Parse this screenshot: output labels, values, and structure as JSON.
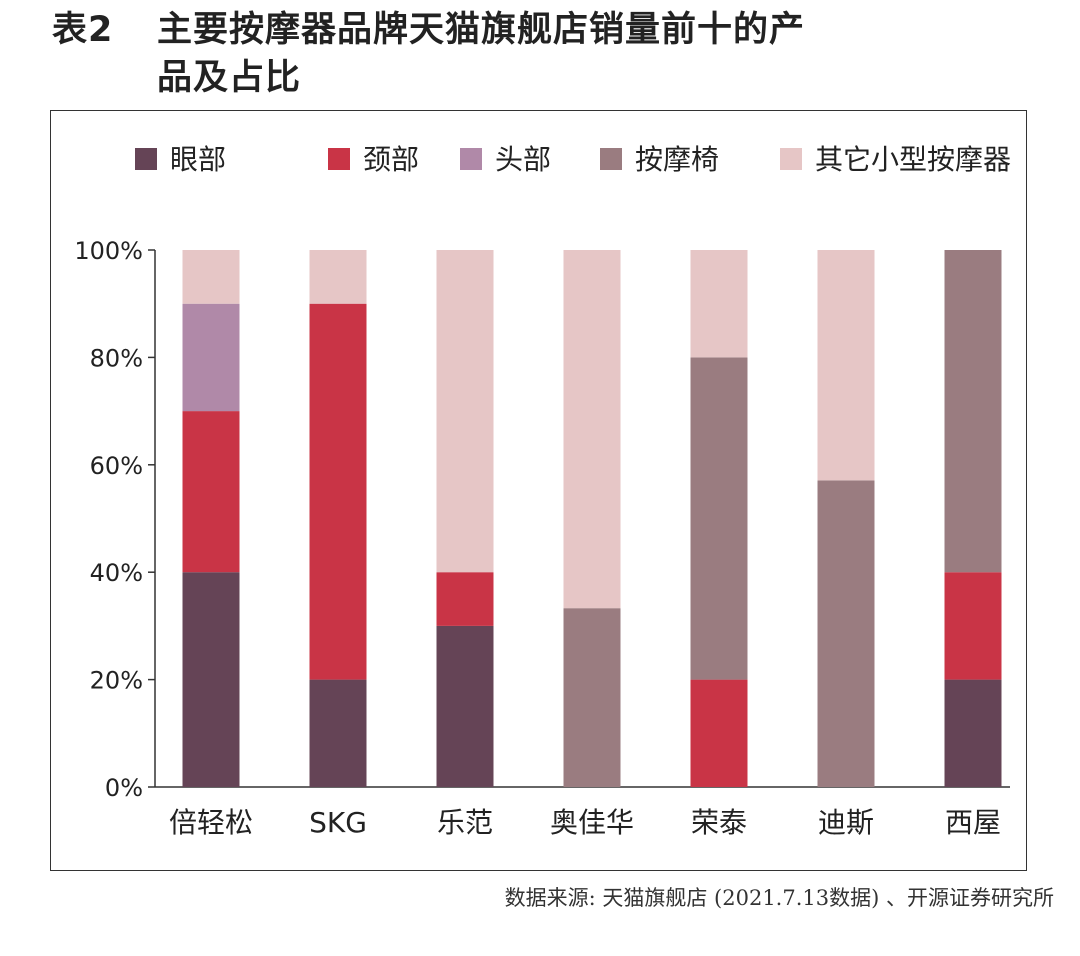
{
  "title": {
    "number": "表2",
    "line1": "主要按摩器品牌天猫旗舰店销量前十的产",
    "line2": "品及占比"
  },
  "source": "数据来源: 天猫旗舰店 (2021.7.13数据) 、开源证券研究所",
  "chart_data": {
    "type": "bar",
    "stacked": true,
    "categories": [
      "倍轻松",
      "SKG",
      "乐范",
      "奥佳华",
      "荣泰",
      "迪斯",
      "西屋"
    ],
    "series": [
      {
        "name": "眼部",
        "color": "#654456",
        "values": [
          40,
          20,
          30,
          0,
          0,
          0,
          20
        ]
      },
      {
        "name": "颈部",
        "color": "#c93446",
        "values": [
          30,
          70,
          10,
          0,
          20,
          0,
          20
        ]
      },
      {
        "name": "头部",
        "color": "#b089a8",
        "values": [
          20,
          0,
          0,
          0,
          0,
          0,
          0
        ]
      },
      {
        "name": "按摩椅",
        "color": "#9a7c80",
        "values": [
          0,
          0,
          0,
          33.3,
          60,
          57.1,
          60
        ]
      },
      {
        "name": "其它小型按摩器",
        "color": "#e6c6c6",
        "values": [
          10,
          10,
          60,
          66.7,
          20,
          42.9,
          0
        ]
      }
    ],
    "yticks": [
      "0%",
      "20%",
      "40%",
      "60%",
      "80%",
      "100%"
    ],
    "ylim": [
      0,
      100
    ],
    "legend": "top",
    "grid": false
  }
}
